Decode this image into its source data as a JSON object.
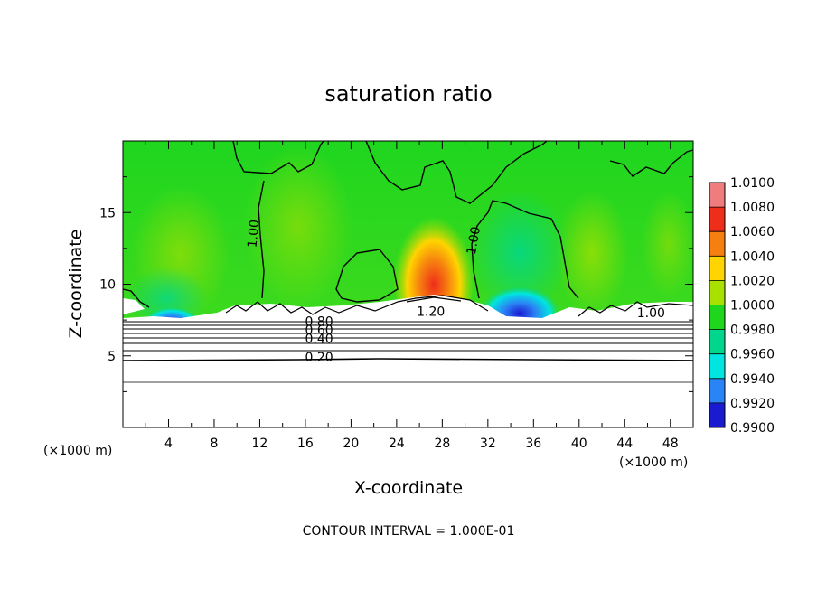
{
  "chart_data": {
    "type": "heatmap",
    "title": "saturation ratio",
    "xlabel": "X-coordinate",
    "ylabel": "Z-coordinate",
    "x_unit": "(×1000 m)",
    "x_unit_right": "(×1000 m)",
    "xlim": [
      0,
      50
    ],
    "ylim": [
      0,
      20
    ],
    "x_ticks": [
      "4",
      "8",
      "12",
      "16",
      "20",
      "24",
      "28",
      "32",
      "36",
      "40",
      "44",
      "48"
    ],
    "y_ticks": [
      "5",
      "10",
      "15"
    ],
    "colorbar": {
      "levels": [
        "1.0100",
        "1.0080",
        "1.0060",
        "1.0040",
        "1.0020",
        "1.0000",
        "0.9980",
        "0.9960",
        "0.9940",
        "0.9920",
        "0.9900"
      ],
      "colors": [
        "#f07d7d",
        "#ee2d1a",
        "#f6800f",
        "#ffd400",
        "#a8e000",
        "#1fd61f",
        "#00d78c",
        "#00e5e0",
        "#2b84f5",
        "#1a1ad0",
        "#5a1a9a"
      ]
    },
    "contour_labels": [
      {
        "text": "1.00",
        "x": 11.8,
        "y": 13.5,
        "rotate": -85
      },
      {
        "text": "1.00",
        "x": 31.1,
        "y": 13.0,
        "rotate": -80
      },
      {
        "text": "1.00",
        "x": 46.3,
        "y": 7.7,
        "rotate": 0
      },
      {
        "text": "1.20",
        "x": 27.0,
        "y": 7.8,
        "rotate": 0
      },
      {
        "text": "0.80",
        "x": 17.2,
        "y": 7.1,
        "rotate": 0
      },
      {
        "text": "0.60",
        "x": 17.2,
        "y": 6.5,
        "rotate": 0
      },
      {
        "text": "0.40",
        "x": 17.2,
        "y": 5.9,
        "rotate": 0
      },
      {
        "text": "0.20",
        "x": 17.2,
        "y": 4.6,
        "rotate": 0
      }
    ],
    "footer": "CONTOUR INTERVAL = 1.000E-01"
  }
}
